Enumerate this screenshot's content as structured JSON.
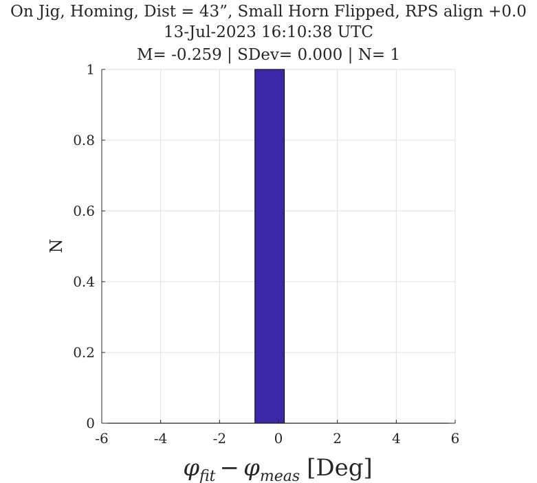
{
  "chart_data": {
    "type": "bar",
    "title_lines": [
      "On Jig, Homing, Dist = 43”, Small Horn Flipped, RPS align +0.0",
      "13-Jul-2023 16:10:38 UTC",
      "M= -0.259 | SDev= 0.000 | N= 1"
    ],
    "xlabel": {
      "phi": "φ",
      "sub1": "fit",
      "minus": "−",
      "sub2": "meas",
      "unit": "[Deg]"
    },
    "ylabel": "N",
    "xlim": [
      -6,
      6
    ],
    "ylim": [
      0,
      1
    ],
    "xticks": [
      -6,
      -4,
      -2,
      0,
      2,
      4,
      6
    ],
    "xtick_labels": [
      "-6",
      "-4",
      "-2",
      "0",
      "2",
      "4",
      "6"
    ],
    "yticks": [
      0,
      0.2,
      0.4,
      0.6,
      0.8,
      1
    ],
    "ytick_labels": [
      "0",
      "0.2",
      "0.4",
      "0.6",
      "0.8",
      "1"
    ],
    "grid": true,
    "bars": [
      {
        "x_start": -0.8,
        "x_end": 0.2,
        "value": 1
      }
    ],
    "bar_color": "#3b28a9",
    "bar_edge_color": "#000000"
  }
}
